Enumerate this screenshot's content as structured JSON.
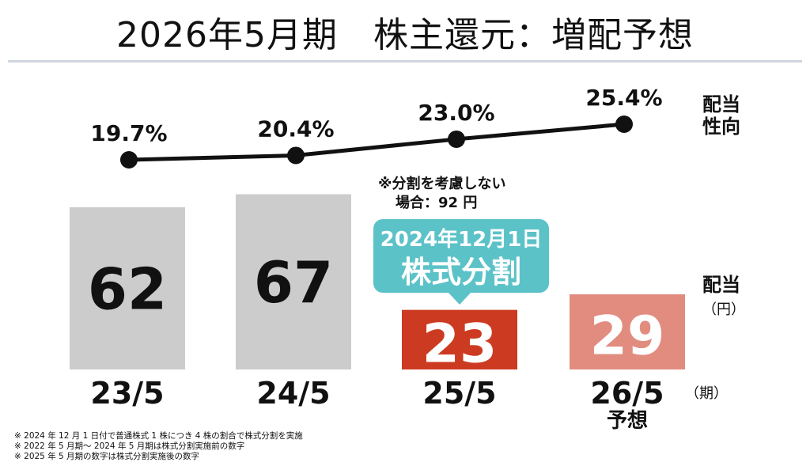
{
  "title": "2026年5月期　株主還元：増配予想",
  "chart_data": {
    "type": "bar",
    "categories": [
      "23/5",
      "24/5",
      "25/5",
      "26/5"
    ],
    "category_sublabels": [
      "",
      "",
      "",
      "予想"
    ],
    "values": [
      62,
      67,
      23,
      29
    ],
    "value_labels": [
      "62",
      "67",
      "23",
      "29"
    ],
    "bar_colors": [
      "#cccccc",
      "#cccccc",
      "#cc3b21",
      "#e28c80"
    ],
    "value_label_colors": [
      "#111111",
      "#111111",
      "#ffffff",
      "#ffffff"
    ],
    "bar_axis_label": "配当",
    "bar_axis_unit": "（円）",
    "x_axis_unit": "（期）",
    "payout_ratio": {
      "label": "配当性向",
      "label_lines": [
        "配当",
        "性向"
      ],
      "values": [
        19.7,
        20.4,
        23.0,
        25.4
      ],
      "value_labels": [
        "19.7%",
        "20.4%",
        "23.0%",
        "25.4%"
      ],
      "line_color": "#111111"
    },
    "annotation": {
      "lines": [
        "※分割を考慮しない",
        "場合：92 円"
      ]
    },
    "callout": {
      "line1": "2024年12月1日",
      "line2": "株式分割",
      "color": "#5bc2c8"
    }
  },
  "footnotes": [
    "※ 2024 年 12 月 1 日付で普通株式 1 株につき 4 株の割合で株式分割を実施",
    "※ 2022 年 5 月期～ 2024 年 5 月期は株式分割実施前の数字",
    "※ 2025 年 5 月期の数字は株式分割実施後の数字"
  ]
}
